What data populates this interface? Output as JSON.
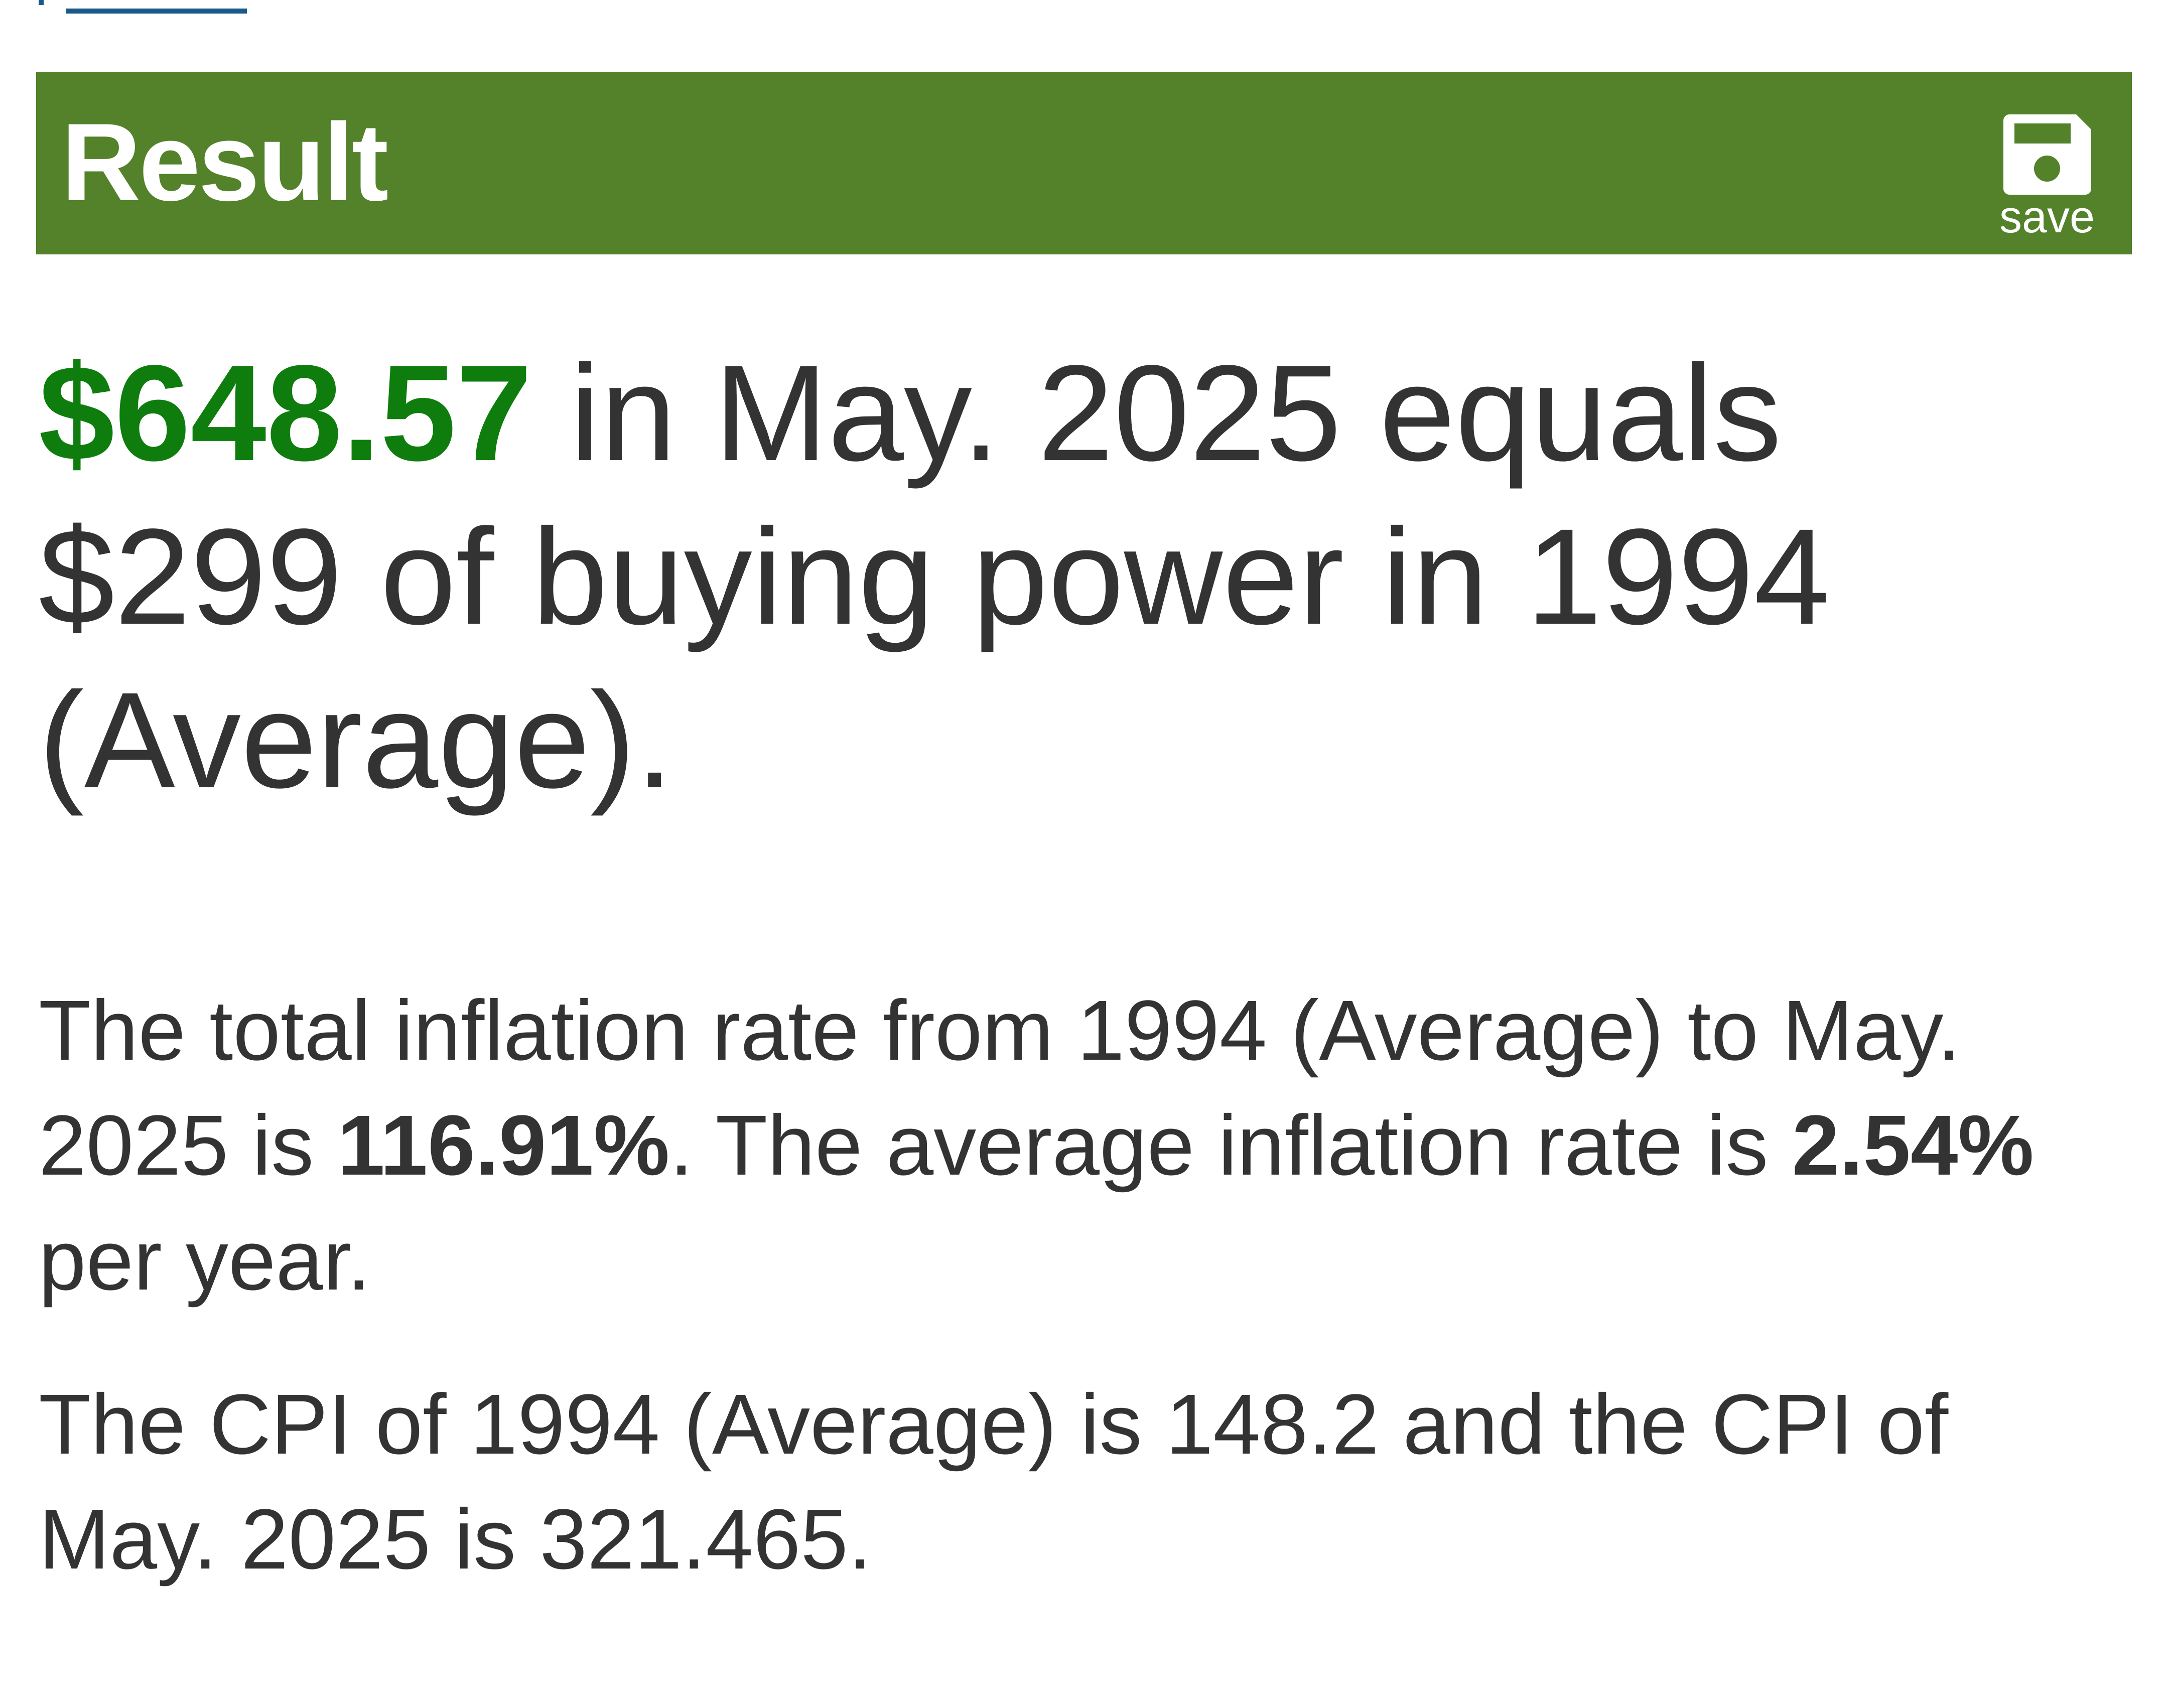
{
  "header": {
    "title": "Result",
    "save": "save"
  },
  "result": {
    "amount": "$648.57",
    "text": " in May. 2025 equals $299 of buying power in 1994 (Average)."
  },
  "paragraphs": [
    {
      "parts": [
        {
          "text": "The total inflation rate from 1994 (Average) to May. 2025 is ",
          "bold": false
        },
        {
          "text": "116.91%",
          "bold": true
        },
        {
          "text": ". The average inflation rate is ",
          "bold": false
        },
        {
          "text": "2.54%",
          "bold": true
        },
        {
          "text": " per year.",
          "bold": false
        }
      ]
    },
    {
      "parts": [
        {
          "text": "The CPI of 1994 (Average) is 148.2 and the CPI of May. 2025 is 321.465.",
          "bold": false
        }
      ]
    }
  ]
}
